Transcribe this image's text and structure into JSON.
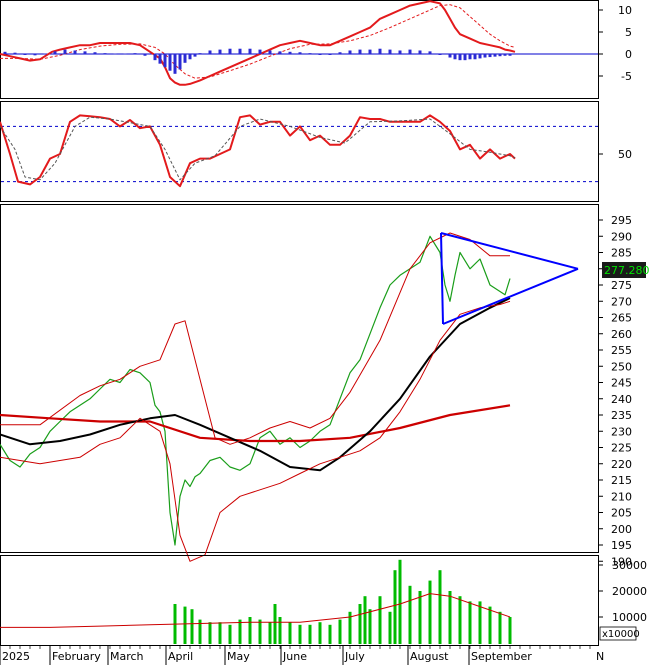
{
  "chart_data": [
    {
      "type": "line",
      "panel": "macd",
      "yticks": [
        10,
        5,
        0,
        -5
      ],
      "ylim": [
        -8,
        12
      ],
      "series": [
        {
          "role": "macd",
          "color": "#e31a1c",
          "x": [
            0,
            10,
            20,
            30,
            40,
            52,
            60,
            70,
            80,
            90,
            100,
            110,
            120,
            130,
            140,
            150,
            160,
            165,
            170,
            175,
            180,
            185,
            190,
            200,
            210,
            220,
            230,
            240,
            250,
            260,
            270,
            280,
            290,
            300,
            310,
            320,
            330,
            340,
            350,
            360,
            370,
            380,
            390,
            400,
            410,
            420,
            430,
            440,
            445,
            450,
            455,
            460,
            470,
            480,
            490,
            500,
            505,
            510,
            515
          ],
          "values": [
            0,
            -0.5,
            -1,
            -1.5,
            -1.2,
            0.5,
            1,
            1.5,
            2,
            2,
            2.5,
            2.5,
            2.5,
            2.5,
            2,
            0.5,
            -1,
            -3,
            -5.5,
            -6.5,
            -7,
            -7,
            -6.8,
            -6,
            -5,
            -4,
            -3,
            -2,
            -1,
            0,
            1,
            2,
            2.5,
            3,
            2.5,
            2,
            2,
            3,
            4,
            5,
            6,
            8,
            9,
            10,
            11,
            11.5,
            12,
            11.5,
            10,
            8,
            6,
            4.5,
            3.5,
            2.5,
            2,
            1.5,
            1,
            0.8,
            0.5
          ]
        },
        {
          "role": "signal",
          "color": "#e31a1c",
          "dashed": true,
          "x": [
            0,
            20,
            40,
            60,
            80,
            100,
            120,
            140,
            155,
            165,
            175,
            185,
            195,
            210,
            230,
            250,
            270,
            290,
            310,
            330,
            350,
            370,
            390,
            410,
            430,
            440,
            450,
            460,
            470,
            480,
            490,
            500,
            510,
            515
          ],
          "values": [
            -1,
            -1,
            -1.2,
            -0.3,
            1,
            1.8,
            2.2,
            2.3,
            1.5,
            0,
            -2.5,
            -4.5,
            -5.5,
            -5.2,
            -3.8,
            -2.3,
            -0.5,
            1.2,
            2.2,
            2.3,
            3,
            4.2,
            6,
            8,
            10,
            11,
            11.2,
            10.5,
            8.5,
            6.5,
            4.5,
            3,
            1.8,
            1.5
          ]
        },
        {
          "role": "histogram",
          "color": "#2b2bd4",
          "x": [
            5,
            15,
            25,
            35,
            45,
            55,
            65,
            75,
            85,
            95,
            105,
            115,
            125,
            135,
            145,
            155,
            160,
            165,
            170,
            175,
            180,
            185,
            190,
            195,
            200,
            210,
            220,
            230,
            240,
            250,
            260,
            270,
            280,
            290,
            300,
            310,
            320,
            330,
            340,
            350,
            360,
            370,
            380,
            390,
            400,
            410,
            420,
            430,
            440,
            450,
            455,
            460,
            465,
            470,
            475,
            480,
            485,
            490,
            495,
            500,
            505,
            510
          ],
          "values": [
            0.5,
            0.3,
            -0.1,
            -0.3,
            0.1,
            0.6,
            1,
            0.8,
            0.6,
            0.4,
            0.2,
            0.1,
            0.1,
            0.2,
            -0.4,
            -1.4,
            -2.2,
            -3,
            -3.8,
            -4.5,
            -3.5,
            -2,
            -1.2,
            -0.6,
            0.2,
            0.8,
            1,
            1.2,
            1.2,
            1.2,
            1,
            0.8,
            0.6,
            0.5,
            0.4,
            0.2,
            0,
            -0.2,
            0.4,
            0.8,
            1,
            1,
            1.2,
            1,
            0.8,
            1,
            0.8,
            0.6,
            0,
            -0.8,
            -1.2,
            -1.4,
            -1.4,
            -1.2,
            -1.2,
            -1,
            -0.8,
            -0.7,
            -0.6,
            -0.5,
            -0.4,
            -0.4
          ]
        }
      ]
    },
    {
      "type": "line",
      "panel": "oscillator",
      "yticks": [
        50
      ],
      "ylim": [
        0,
        100
      ],
      "reference_lines": [
        80,
        20
      ],
      "series": [
        {
          "role": "main",
          "color": "#e31a1c",
          "x": [
            0,
            10,
            18,
            30,
            40,
            50,
            60,
            70,
            80,
            90,
            100,
            110,
            120,
            130,
            140,
            150,
            160,
            170,
            180,
            190,
            200,
            210,
            220,
            230,
            240,
            250,
            260,
            270,
            280,
            290,
            300,
            310,
            320,
            330,
            340,
            350,
            360,
            370,
            380,
            390,
            400,
            410,
            420,
            430,
            440,
            450,
            460,
            470,
            480,
            490,
            500,
            510,
            515
          ],
          "values": [
            85,
            50,
            20,
            17,
            25,
            45,
            50,
            85,
            92,
            91,
            90,
            88,
            80,
            87,
            78,
            80,
            60,
            25,
            15,
            40,
            45,
            45,
            50,
            55,
            90,
            92,
            82,
            85,
            85,
            70,
            80,
            65,
            70,
            60,
            60,
            70,
            90,
            88,
            88,
            85,
            85,
            85,
            85,
            92,
            85,
            75,
            55,
            60,
            45,
            55,
            45,
            50,
            45
          ]
        },
        {
          "role": "signal",
          "color": "#555555",
          "dashed": true,
          "x": [
            0,
            15,
            25,
            40,
            55,
            65,
            75,
            90,
            110,
            130,
            150,
            165,
            180,
            195,
            215,
            240,
            260,
            290,
            320,
            345,
            370,
            400,
            430,
            450,
            470,
            490,
            510,
            515
          ],
          "values": [
            80,
            55,
            25,
            22,
            40,
            60,
            80,
            90,
            88,
            84,
            80,
            55,
            22,
            40,
            48,
            80,
            88,
            80,
            68,
            62,
            85,
            86,
            88,
            72,
            55,
            52,
            48,
            46
          ]
        }
      ]
    },
    {
      "type": "line",
      "panel": "price",
      "yticks": [
        295,
        290,
        285,
        280,
        275,
        270,
        265,
        260,
        255,
        250,
        245,
        240,
        235,
        230,
        225,
        220,
        215,
        210,
        205,
        200,
        195,
        190
      ],
      "ylim": [
        186,
        299
      ],
      "last_price": "277.280",
      "series": [
        {
          "role": "close",
          "color": "#1a9e1a",
          "x": [
            0,
            10,
            20,
            30,
            40,
            50,
            60,
            70,
            80,
            90,
            100,
            110,
            120,
            130,
            140,
            150,
            155,
            160,
            165,
            170,
            175,
            180,
            185,
            190,
            195,
            200,
            210,
            220,
            230,
            240,
            250,
            260,
            270,
            280,
            290,
            300,
            310,
            320,
            330,
            340,
            350,
            360,
            370,
            380,
            390,
            400,
            410,
            420,
            430,
            440,
            445,
            450,
            455,
            460,
            470,
            480,
            490,
            500,
            505,
            510
          ],
          "values": [
            226,
            221,
            219,
            223,
            225,
            230,
            233,
            236,
            238,
            240,
            243,
            246,
            245,
            249,
            248,
            245,
            238,
            236,
            230,
            205,
            195,
            210,
            215,
            213,
            216,
            217,
            221,
            222,
            219,
            218,
            220,
            228,
            230,
            226,
            228,
            225,
            227,
            230,
            232,
            240,
            248,
            252,
            260,
            268,
            275,
            278,
            280,
            282,
            290,
            285,
            275,
            270,
            278,
            285,
            280,
            283,
            275,
            273,
            272,
            277
          ]
        },
        {
          "role": "ma-long",
          "color": "#cc0000",
          "x": [
            0,
            50,
            100,
            150,
            200,
            250,
            300,
            350,
            400,
            450,
            510
          ],
          "values": [
            235,
            234,
            233,
            233,
            228,
            227,
            227,
            228,
            231,
            235,
            238
          ]
        },
        {
          "role": "ma-medium",
          "color": "#000000",
          "x": [
            0,
            30,
            60,
            90,
            120,
            150,
            175,
            200,
            230,
            260,
            290,
            320,
            340,
            370,
            400,
            430,
            460,
            490,
            510
          ],
          "values": [
            229,
            226,
            227,
            229,
            232,
            234,
            235,
            232,
            228,
            224,
            219,
            218,
            222,
            230,
            240,
            253,
            263,
            268,
            271
          ]
        },
        {
          "role": "bb-upper",
          "color": "#cc0000",
          "x": [
            0,
            40,
            80,
            100,
            120,
            140,
            160,
            175,
            185,
            200,
            215,
            230,
            250,
            270,
            290,
            310,
            330,
            350,
            380,
            410,
            430,
            450,
            470,
            490,
            510
          ],
          "values": [
            232,
            232,
            241,
            244,
            246,
            250,
            252,
            263,
            264,
            246,
            228,
            226,
            228,
            231,
            233,
            231,
            234,
            242,
            258,
            280,
            288,
            291,
            289,
            284,
            284
          ]
        },
        {
          "role": "bb-lower",
          "color": "#cc0000",
          "x": [
            0,
            40,
            80,
            100,
            120,
            140,
            160,
            170,
            180,
            190,
            205,
            220,
            240,
            260,
            280,
            300,
            320,
            340,
            360,
            380,
            400,
            420,
            440,
            460,
            480,
            500,
            510
          ],
          "values": [
            222,
            220,
            222,
            226,
            228,
            234,
            230,
            220,
            198,
            190,
            192,
            205,
            210,
            212,
            214,
            217,
            220,
            222,
            224,
            228,
            236,
            246,
            258,
            266,
            268,
            269,
            270
          ]
        },
        {
          "role": "triangle-top",
          "color": "#0000ff",
          "x": [
            441,
            578
          ],
          "values": [
            291,
            280
          ]
        },
        {
          "role": "triangle-bottom",
          "color": "#0000ff",
          "x": [
            443,
            578
          ],
          "values": [
            263,
            280
          ]
        },
        {
          "role": "triangle-left",
          "color": "#0000ff",
          "x": [
            441,
            443
          ],
          "values": [
            291,
            263
          ]
        }
      ]
    },
    {
      "type": "bar",
      "panel": "volume",
      "yticks": [
        30000,
        20000,
        10000
      ],
      "ylim": [
        0,
        35000
      ],
      "unit": "x10000",
      "series": [
        {
          "role": "volume",
          "color": "#00bb00",
          "x": [
            175,
            185,
            192,
            200,
            210,
            220,
            230,
            240,
            250,
            260,
            270,
            275,
            280,
            290,
            300,
            310,
            320,
            330,
            340,
            350,
            360,
            365,
            370,
            380,
            390,
            395,
            400,
            410,
            420,
            430,
            440,
            450,
            460,
            470,
            480,
            490,
            500,
            510
          ],
          "values": [
            15000,
            14000,
            13000,
            9000,
            8000,
            8000,
            7000,
            9000,
            10000,
            9000,
            8000,
            15000,
            10000,
            8000,
            7000,
            7000,
            8000,
            7000,
            9000,
            12000,
            15000,
            18000,
            13000,
            18000,
            12000,
            28000,
            32000,
            22000,
            20000,
            24000,
            28000,
            20000,
            18000,
            16000,
            16000,
            14000,
            12000,
            10000
          ]
        },
        {
          "role": "volume-ma",
          "color": "#cc0000",
          "x": [
            0,
            50,
            100,
            150,
            200,
            250,
            300,
            350,
            400,
            430,
            450,
            480,
            510
          ],
          "values": [
            6000,
            6000,
            6500,
            7000,
            7500,
            8000,
            8000,
            10000,
            15000,
            19000,
            18000,
            14000,
            10000
          ]
        }
      ]
    }
  ],
  "axis": {
    "months": [
      "2025",
      "February",
      "March",
      "April",
      "May",
      "June",
      "July",
      "August",
      "September"
    ],
    "trailing_label": "N"
  }
}
